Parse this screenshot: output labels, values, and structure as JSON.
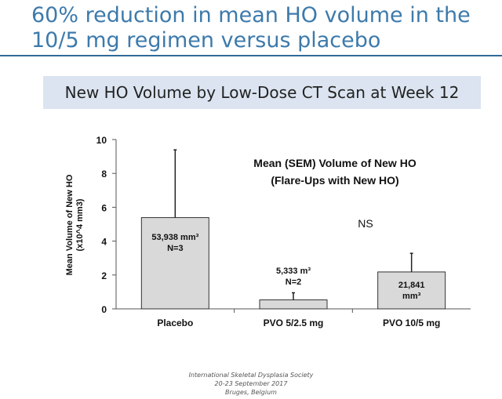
{
  "slide": {
    "title_line1": "60% reduction in mean HO volume in the",
    "title_line2": "10/5 mg regimen versus placebo",
    "subtitle": "New HO Volume by Low-Dose CT Scan at Week 12"
  },
  "footer": {
    "line1": "International Skeletal Dysplasia Society",
    "line2": "20-23 September 2017",
    "line3": "Bruges, Belgium"
  },
  "colors": {
    "title": "#3d7aab",
    "rule": "#2f6a98",
    "subtitle_bg": "#dbe4f0",
    "bar_fill": "#d9d9d9",
    "bar_stroke": "#333333"
  },
  "chart_data": {
    "type": "bar",
    "title_line1": "Mean (SEM) Volume of New HO",
    "title_line2": "(Flare-Ups with New HO)",
    "ylabel_line1": "Mean Volume of New HO",
    "ylabel_line2": "(x10^4 mm3)",
    "ylim": [
      0,
      10
    ],
    "yticks": [
      "0",
      "2",
      "4",
      "6",
      "8",
      "10"
    ],
    "grid": false,
    "categories": [
      "Placebo",
      "PVO 5/2.5 mg",
      "PVO 10/5 mg"
    ],
    "values": [
      5.39,
      0.53,
      2.18
    ],
    "errors": [
      4.0,
      0.42,
      1.1
    ],
    "bar_labels": [
      [
        "53,938 mm³",
        "N=3"
      ],
      [
        "5,333 m³",
        "N=2"
      ],
      [
        "21,841",
        "mm³"
      ]
    ],
    "annotation": "NS"
  }
}
